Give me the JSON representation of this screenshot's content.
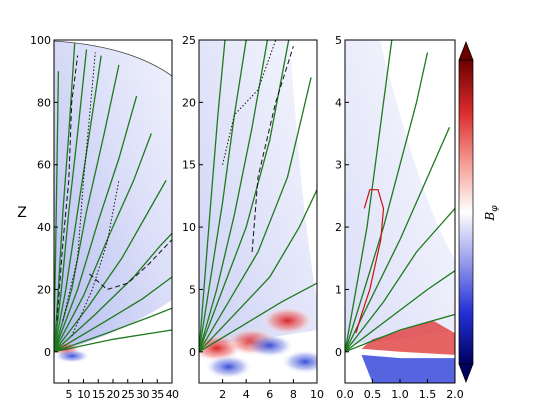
{
  "chart_data": [
    {
      "type": "heatmap",
      "panel": "left",
      "ylabel": "Z",
      "xlim": [
        0,
        40
      ],
      "ylim": [
        -10,
        100
      ],
      "x_ticks": [
        5,
        10,
        15,
        20,
        25,
        30,
        35,
        40
      ],
      "x_tick_labels": [
        "5",
        "10",
        "15",
        "20",
        "25",
        "30",
        "35",
        "40"
      ],
      "y_ticks": [
        0,
        20,
        40,
        60,
        80,
        100
      ],
      "y_tick_labels": [
        "0",
        "20",
        "40",
        "60",
        "80",
        "100"
      ],
      "field_lines": [
        {
          "color": "#1e7a1e",
          "points": [
            [
              0,
              0
            ],
            [
              1.5,
              20
            ],
            [
              3,
              45
            ],
            [
              5,
              70
            ],
            [
              7,
              99
            ]
          ]
        },
        {
          "color": "#1e7a1e",
          "points": [
            [
              0,
              0
            ],
            [
              2.5,
              20
            ],
            [
              5,
              45
            ],
            [
              8,
              70
            ],
            [
              11,
              97
            ]
          ]
        },
        {
          "color": "#1e7a1e",
          "points": [
            [
              0,
              0
            ],
            [
              4,
              20
            ],
            [
              8,
              45
            ],
            [
              12,
              70
            ],
            [
              16,
              95
            ]
          ]
        },
        {
          "color": "#1e7a1e",
          "points": [
            [
              0,
              0
            ],
            [
              6,
              20
            ],
            [
              11,
              45
            ],
            [
              17,
              70
            ],
            [
              22,
              92
            ]
          ]
        },
        {
          "color": "#1e7a1e",
          "points": [
            [
              0,
              0
            ],
            [
              8,
              20
            ],
            [
              15,
              42
            ],
            [
              22,
              62
            ],
            [
              28,
              82
            ]
          ]
        },
        {
          "color": "#1e7a1e",
          "points": [
            [
              0,
              0
            ],
            [
              10,
              18
            ],
            [
              19,
              38
            ],
            [
              27,
              55
            ],
            [
              33,
              70
            ]
          ]
        },
        {
          "color": "#1e7a1e",
          "points": [
            [
              0,
              0
            ],
            [
              12,
              15
            ],
            [
              23,
              30
            ],
            [
              32,
              45
            ],
            [
              38,
              55
            ]
          ]
        },
        {
          "color": "#1e7a1e",
          "points": [
            [
              0,
              0
            ],
            [
              14,
              12
            ],
            [
              27,
              24
            ],
            [
              36,
              34
            ],
            [
              40,
              38
            ]
          ]
        },
        {
          "color": "#1e7a1e",
          "points": [
            [
              0,
              0
            ],
            [
              16,
              9
            ],
            [
              30,
              17
            ],
            [
              40,
              24
            ]
          ]
        },
        {
          "color": "#1e7a1e",
          "points": [
            [
              0,
              0
            ],
            [
              18,
              6
            ],
            [
              32,
              11
            ],
            [
              40,
              14
            ]
          ]
        },
        {
          "color": "#1e7a1e",
          "points": [
            [
              0,
              0
            ],
            [
              20,
              4
            ],
            [
              40,
              7
            ]
          ]
        },
        {
          "color": "#1e7a1e",
          "points": [
            [
              0,
              5
            ],
            [
              0.5,
              30
            ],
            [
              1,
              60
            ],
            [
              1.5,
              90
            ]
          ]
        }
      ],
      "contours_dashed": [
        {
          "points": [
            [
              1,
              10
            ],
            [
              3,
              35
            ],
            [
              5,
              55
            ],
            [
              6,
              80
            ],
            [
              8,
              95
            ]
          ]
        },
        {
          "points": [
            [
              12,
              25
            ],
            [
              18,
              20
            ],
            [
              25,
              22
            ],
            [
              32,
              28
            ],
            [
              40,
              36
            ]
          ]
        }
      ],
      "contours_dotted": [
        {
          "points": [
            [
              3,
              10
            ],
            [
              8,
              30
            ],
            [
              10,
              55
            ],
            [
              12,
              75
            ],
            [
              14,
              96
            ]
          ]
        },
        {
          "points": [
            [
              6,
              5
            ],
            [
              13,
              20
            ],
            [
              18,
              35
            ],
            [
              22,
              55
            ]
          ]
        }
      ]
    },
    {
      "type": "heatmap",
      "panel": "middle",
      "xlim": [
        0,
        10
      ],
      "ylim": [
        -2.5,
        25
      ],
      "x_ticks": [
        2,
        4,
        6,
        8,
        10
      ],
      "x_tick_labels": [
        "2",
        "4",
        "6",
        "8",
        "10"
      ],
      "y_ticks": [
        0,
        5,
        10,
        15,
        20,
        25
      ],
      "y_tick_labels": [
        "0",
        "5",
        "10",
        "15",
        "20",
        "25"
      ],
      "red_blobs": [
        [
          1.5,
          0.3
        ],
        [
          4.5,
          0.8
        ],
        [
          7.5,
          2.5
        ]
      ],
      "blue_blobs": [
        [
          2.5,
          -1.2
        ],
        [
          6.0,
          0.5
        ],
        [
          9.0,
          -0.8
        ]
      ],
      "field_lines": [
        {
          "color": "#1e7a1e",
          "points": [
            [
              0,
              0
            ],
            [
              0.5,
              6
            ],
            [
              1,
              12
            ],
            [
              1.6,
              19
            ],
            [
              2.2,
              25
            ]
          ]
        },
        {
          "color": "#1e7a1e",
          "points": [
            [
              0,
              0
            ],
            [
              1,
              6
            ],
            [
              2,
              12
            ],
            [
              3,
              19
            ],
            [
              4,
              25
            ]
          ]
        },
        {
          "color": "#1e7a1e",
          "points": [
            [
              0,
              0
            ],
            [
              1.5,
              5
            ],
            [
              3,
              11
            ],
            [
              4.5,
              18
            ],
            [
              5.8,
              25
            ]
          ]
        },
        {
          "color": "#1e7a1e",
          "points": [
            [
              0,
              0
            ],
            [
              2,
              5
            ],
            [
              4,
              10
            ],
            [
              6,
              17
            ],
            [
              7.6,
              25
            ]
          ]
        },
        {
          "color": "#1e7a1e",
          "points": [
            [
              0,
              0
            ],
            [
              2.5,
              4
            ],
            [
              5,
              8
            ],
            [
              7.5,
              14
            ],
            [
              9.5,
              22
            ]
          ]
        },
        {
          "color": "#1e7a1e",
          "points": [
            [
              0,
              0
            ],
            [
              3,
              3
            ],
            [
              6,
              6
            ],
            [
              8.5,
              10
            ],
            [
              10,
              13
            ]
          ]
        },
        {
          "color": "#1e7a1e",
          "points": [
            [
              0,
              0
            ],
            [
              3.5,
              2
            ],
            [
              7,
              4
            ],
            [
              10,
              5.5
            ]
          ]
        }
      ],
      "contours_dashed": [
        {
          "points": [
            [
              4.5,
              8
            ],
            [
              5,
              14
            ],
            [
              6.5,
              20
            ],
            [
              8,
              24.5
            ]
          ]
        }
      ],
      "contours_dotted": [
        {
          "points": [
            [
              2,
              15
            ],
            [
              3,
              19
            ],
            [
              5,
              21
            ],
            [
              6.5,
              25
            ]
          ]
        }
      ]
    },
    {
      "type": "heatmap",
      "panel": "right",
      "xlim": [
        0,
        2.0
      ],
      "ylim": [
        -0.5,
        5
      ],
      "x_ticks": [
        0.0,
        0.5,
        1.0,
        1.5,
        2.0
      ],
      "x_tick_labels": [
        "0.0",
        "0.5",
        "1.0",
        "1.5",
        "2.0"
      ],
      "y_ticks": [
        0,
        1,
        2,
        3,
        4,
        5
      ],
      "y_tick_labels": [
        "0",
        "1",
        "2",
        "3",
        "4",
        "5"
      ],
      "red_region": [
        [
          0.5,
          0.2
        ],
        [
          1.6,
          0.5
        ],
        [
          2.0,
          0.3
        ],
        [
          2.0,
          -0.05
        ],
        [
          1.0,
          0.0
        ],
        [
          0.3,
          0.05
        ]
      ],
      "blue_region": [
        [
          0.3,
          -0.05
        ],
        [
          1.0,
          -0.1
        ],
        [
          2.0,
          -0.1
        ],
        [
          2.0,
          -0.5
        ],
        [
          0.5,
          -0.5
        ]
      ],
      "red_contour": [
        [
          0.35,
          2.3
        ],
        [
          0.45,
          2.6
        ],
        [
          0.6,
          2.6
        ],
        [
          0.7,
          2.3
        ],
        [
          0.65,
          1.8
        ],
        [
          0.55,
          1.4
        ],
        [
          0.45,
          1.0
        ],
        [
          0.3,
          0.6
        ],
        [
          0.2,
          0.3
        ]
      ],
      "field_lines": [
        {
          "color": "#1e7a1e",
          "points": [
            [
              0,
              0
            ],
            [
              0.2,
              1
            ],
            [
              0.4,
              2
            ],
            [
              0.55,
              3
            ],
            [
              0.7,
              4
            ],
            [
              0.85,
              5
            ]
          ]
        },
        {
          "color": "#1e7a1e",
          "points": [
            [
              0,
              0
            ],
            [
              0.35,
              1
            ],
            [
              0.7,
              2
            ],
            [
              1.0,
              3
            ],
            [
              1.3,
              4
            ],
            [
              1.5,
              4.8
            ]
          ]
        },
        {
          "color": "#1e7a1e",
          "points": [
            [
              0,
              0
            ],
            [
              0.5,
              0.9
            ],
            [
              1.0,
              1.8
            ],
            [
              1.5,
              2.8
            ],
            [
              1.9,
              3.6
            ]
          ]
        },
        {
          "color": "#1e7a1e",
          "points": [
            [
              0,
              0
            ],
            [
              0.7,
              0.8
            ],
            [
              1.3,
              1.6
            ],
            [
              2.0,
              2.3
            ]
          ]
        },
        {
          "color": "#1e7a1e",
          "points": [
            [
              0,
              0
            ],
            [
              0.9,
              0.6
            ],
            [
              1.5,
              1.0
            ],
            [
              2.0,
              1.3
            ]
          ]
        },
        {
          "color": "#1e7a1e",
          "points": [
            [
              0,
              0
            ],
            [
              1.0,
              0.35
            ],
            [
              2.0,
              0.6
            ]
          ]
        }
      ]
    }
  ],
  "colorbar": {
    "label": "B_φ",
    "colors": [
      "#6b0000",
      "#d92b2b",
      "#f6a39b",
      "#ffffff",
      "#9fa4ec",
      "#2430d6",
      "#00005e"
    ]
  }
}
